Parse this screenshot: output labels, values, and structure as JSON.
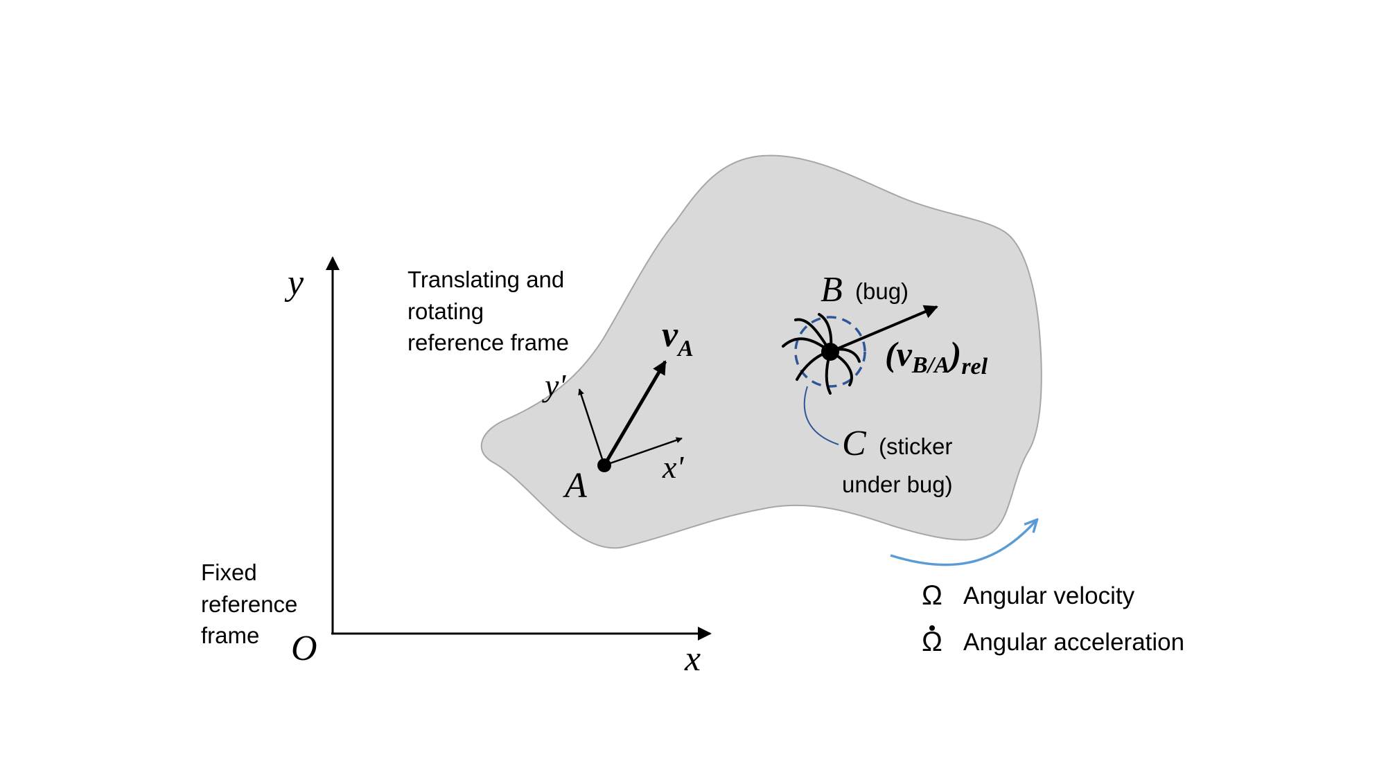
{
  "fixed_frame": {
    "axis_y_label": "y",
    "axis_x_label": "x",
    "origin_label": "O",
    "caption_lines": [
      "Fixed",
      "reference",
      "frame"
    ]
  },
  "moving_frame": {
    "caption_lines": [
      "Translating and",
      "rotating",
      "reference frame"
    ],
    "point_label": "A",
    "axis_x_label": "x'",
    "axis_y_label": "y'",
    "velocity_label": "v",
    "velocity_subscript": "A"
  },
  "bug": {
    "point_label": "B",
    "point_note": "(bug)",
    "rel_velocity_open": "(v",
    "rel_velocity_subscript": "B/A",
    "rel_velocity_close": ")",
    "rel_velocity_suffix": "rel"
  },
  "sticker": {
    "point_label": "C",
    "note_line1": "(sticker",
    "note_line2": "under bug)"
  },
  "legend": {
    "omega_symbol": "Ω",
    "omega_text": "Angular velocity",
    "omega_dot_symbol": "Ω",
    "omega_dot_text": "Angular acceleration"
  },
  "colors": {
    "body_fill": "#d9d9d9",
    "body_stroke": "#a6a6a6",
    "ink": "#000000",
    "rotation_arrow": "#5b9bd5",
    "sticker_circle": "#2f5597"
  }
}
